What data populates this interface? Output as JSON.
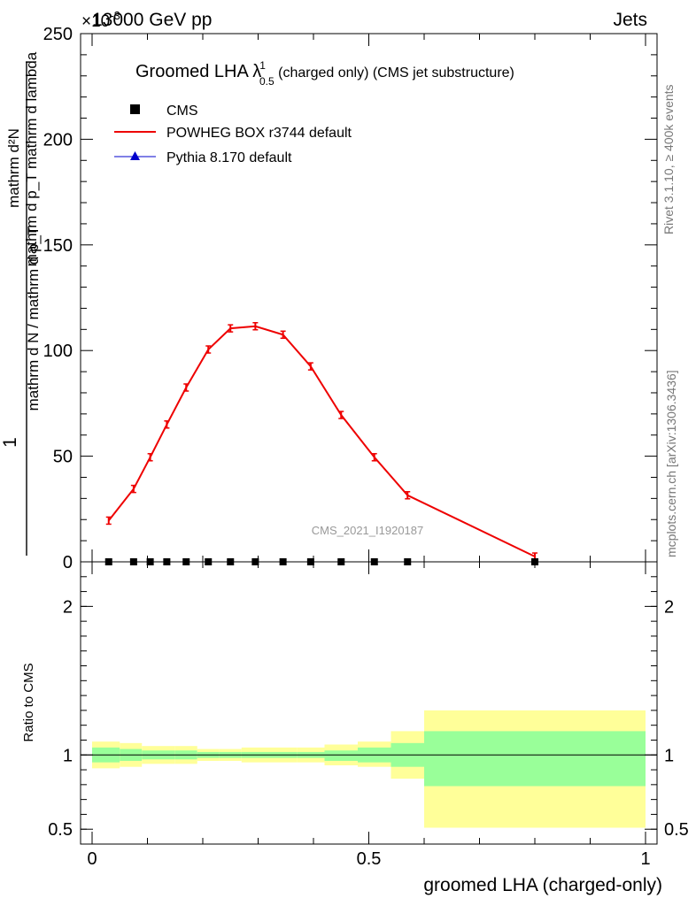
{
  "header": {
    "left": "13000 GeV pp",
    "right": "Jets",
    "exponent": "×10",
    "exponent_power": "-3"
  },
  "title": {
    "prefix": "Groomed LHA ",
    "lambda": "λ",
    "sup": "1",
    "sub": "0.5",
    "suffix": " (charged only) (CMS jet substructure)"
  },
  "side": {
    "rivet": "Rivet 3.1.10, ≥ 400k events",
    "mcplots": "mcplots.cern.ch [arXiv:1306.3436]"
  },
  "watermark": "CMS_2021_I1920187",
  "ylabel": {
    "num_one": "1",
    "denom": "mathrm d N / mathrm d p_T",
    "num_expr": "mathrm d²N",
    "denom_expr": "mathrm d p_T mathrm d lambda"
  },
  "ratio_ylabel": "Ratio to CMS",
  "xlabel": "groomed LHA (charged-only)",
  "legend": [
    {
      "label": "CMS",
      "color": "#000000"
    },
    {
      "label": "POWHEG BOX r3744 default",
      "color": "#ff0000"
    },
    {
      "label": "Pythia 8.170 default",
      "color": "#0000cc"
    }
  ],
  "colors": {
    "data": "#000000",
    "powheg": "#ee0000",
    "pythia": "#0000cc",
    "band_inner": "#99ff99",
    "band_outer": "#ffff99"
  },
  "chart_data": {
    "type": "line",
    "xlim": [
      0,
      1
    ],
    "ylim": [
      0,
      250
    ],
    "ratio_ylim": [
      0.4,
      2.3
    ],
    "x_ticks": [
      "0",
      "0.5",
      "1"
    ],
    "x_tick_values": [
      0,
      0.5,
      1
    ],
    "y_ticks": [
      "0",
      "50",
      "100",
      "150",
      "200",
      "250"
    ],
    "y_tick_values": [
      0,
      50,
      100,
      150,
      200,
      250
    ],
    "ratio_ticks": [
      "0.5",
      "1",
      "2"
    ],
    "ratio_tick_values": [
      0.5,
      1,
      2
    ],
    "bin_edges": [
      0,
      0.05,
      0.09,
      0.12,
      0.15,
      0.19,
      0.23,
      0.27,
      0.32,
      0.37,
      0.42,
      0.48,
      0.54,
      0.6,
      1.0
    ],
    "series": [
      {
        "name": "CMS",
        "x": [
          0.03,
          0.075,
          0.105,
          0.135,
          0.17,
          0.21,
          0.25,
          0.295,
          0.345,
          0.395,
          0.45,
          0.51,
          0.57,
          0.8
        ],
        "y": [
          0,
          0,
          0,
          0,
          0,
          0,
          0,
          0,
          0,
          0,
          0,
          0,
          0,
          0
        ]
      },
      {
        "name": "POWHEG BOX r3744 default",
        "x": [
          0.03,
          0.075,
          0.105,
          0.135,
          0.17,
          0.21,
          0.25,
          0.295,
          0.345,
          0.395,
          0.45,
          0.51,
          0.57,
          0.8
        ],
        "y": [
          19.5,
          34.5,
          49.5,
          65,
          82.5,
          100.5,
          110.5,
          111.5,
          107.5,
          92.5,
          69.5,
          49.5,
          31.5,
          2.5
        ]
      }
    ],
    "ratio_bands": {
      "inner_low": [
        0.95,
        0.96,
        0.97,
        0.97,
        0.97,
        0.98,
        0.98,
        0.98,
        0.98,
        0.98,
        0.96,
        0.95,
        0.92,
        0.79
      ],
      "inner_high": [
        1.05,
        1.04,
        1.03,
        1.03,
        1.03,
        1.02,
        1.02,
        1.02,
        1.02,
        1.02,
        1.03,
        1.05,
        1.08,
        1.16
      ],
      "outer_low": [
        0.91,
        0.92,
        0.94,
        0.94,
        0.94,
        0.96,
        0.96,
        0.95,
        0.95,
        0.95,
        0.93,
        0.92,
        0.84,
        0.51
      ],
      "outer_high": [
        1.09,
        1.08,
        1.06,
        1.06,
        1.06,
        1.04,
        1.04,
        1.05,
        1.05,
        1.05,
        1.07,
        1.09,
        1.16,
        1.3
      ]
    }
  }
}
